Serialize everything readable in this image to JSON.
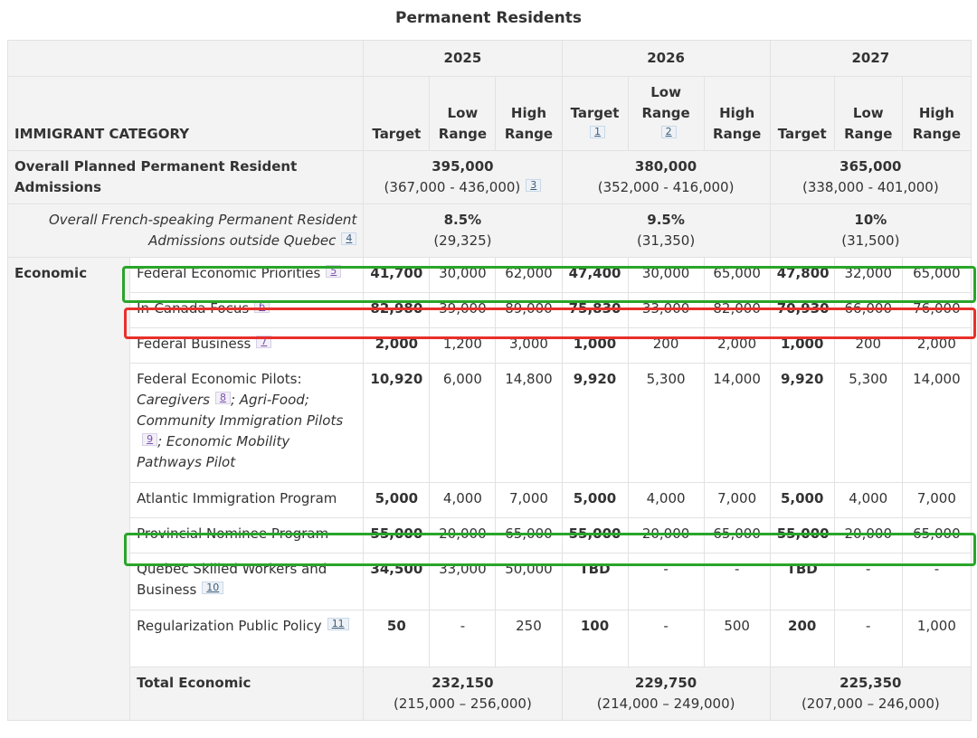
{
  "caption": "Permanent Residents",
  "headers": {
    "category": "IMMIGRANT CATEGORY",
    "years": [
      "2025",
      "2026",
      "2027"
    ],
    "target": "Target",
    "low_range": "Low Range",
    "high_range": "High Range",
    "fn_target_2026": "1",
    "fn_low_2026": "2"
  },
  "overall": {
    "label": "Overall Planned Permanent Resident Admissions",
    "y2025_total": "395,000",
    "y2025_range": "(367,000 - 436,000)",
    "y2025_fn": "3",
    "y2026_total": "380,000",
    "y2026_range": "(352,000 - 416,000)",
    "y2027_total": "365,000",
    "y2027_range": "(338,000 - 401,000)"
  },
  "french": {
    "label": "Overall French-speaking Permanent Resident Admissions outside Quebec",
    "fn": "4",
    "y2025_pct": "8.5%",
    "y2025_count": "(29,325)",
    "y2026_pct": "9.5%",
    "y2026_count": "(31,350)",
    "y2027_pct": "10%",
    "y2027_count": "(31,500)"
  },
  "economic": {
    "label": "Economic",
    "rows": [
      {
        "name": "Federal Economic Priorities",
        "fn": "5",
        "values": [
          "41,700",
          "30,000",
          "62,000",
          "47,400",
          "30,000",
          "65,000",
          "47,800",
          "32,000",
          "65,000"
        ]
      },
      {
        "name": "In-Canada Focus",
        "fn": "6",
        "values": [
          "82,980",
          "39,000",
          "89,000",
          "75,830",
          "33,000",
          "82,000",
          "70,930",
          "66,000",
          "76,000"
        ]
      },
      {
        "name": "Federal Business",
        "fn": "7",
        "values": [
          "2,000",
          "1,200",
          "3,000",
          "1,000",
          "200",
          "2,000",
          "1,000",
          "200",
          "2,000"
        ]
      },
      {
        "name_a": "Federal Economic Pilots:",
        "name_b": "Caregivers",
        "fn_b": "8",
        "name_c": "; Agri-Food; Community Immigration Pilots",
        "fn_c": "9",
        "name_d": "; Economic Mobility Pathways Pilot",
        "values": [
          "10,920",
          "6,000",
          "14,800",
          "9,920",
          "5,300",
          "14,000",
          "9,920",
          "5,300",
          "14,000"
        ]
      },
      {
        "name": "Atlantic Immigration Program",
        "values": [
          "5,000",
          "4,000",
          "7,000",
          "5,000",
          "4,000",
          "7,000",
          "5,000",
          "4,000",
          "7,000"
        ]
      },
      {
        "name": "Provincial Nominee Program",
        "values": [
          "55,000",
          "20,000",
          "65,000",
          "55,000",
          "20,000",
          "65,000",
          "55,000",
          "20,000",
          "65,000"
        ]
      },
      {
        "name": "Quebec Skilled Workers and Business",
        "fn": "10",
        "values": [
          "34,500",
          "33,000",
          "50,000",
          "TBD",
          "-",
          "-",
          "TBD",
          "-",
          "-"
        ]
      },
      {
        "name": "Regularization Public Policy",
        "fn": "11",
        "values": [
          "50",
          "-",
          "250",
          "100",
          "-",
          "500",
          "200",
          "-",
          "1,000"
        ]
      }
    ],
    "total": {
      "label": "Total Economic",
      "y2025_total": "232,150",
      "y2025_range": "(215,000 – 256,000)",
      "y2026_total": "229,750",
      "y2026_range": "(214,000 – 249,000)",
      "y2027_total": "225,350",
      "y2027_range": "(207,000 – 246,000)"
    }
  },
  "highlight_colors": {
    "green": "#2aa52a",
    "red": "#e8302a"
  }
}
